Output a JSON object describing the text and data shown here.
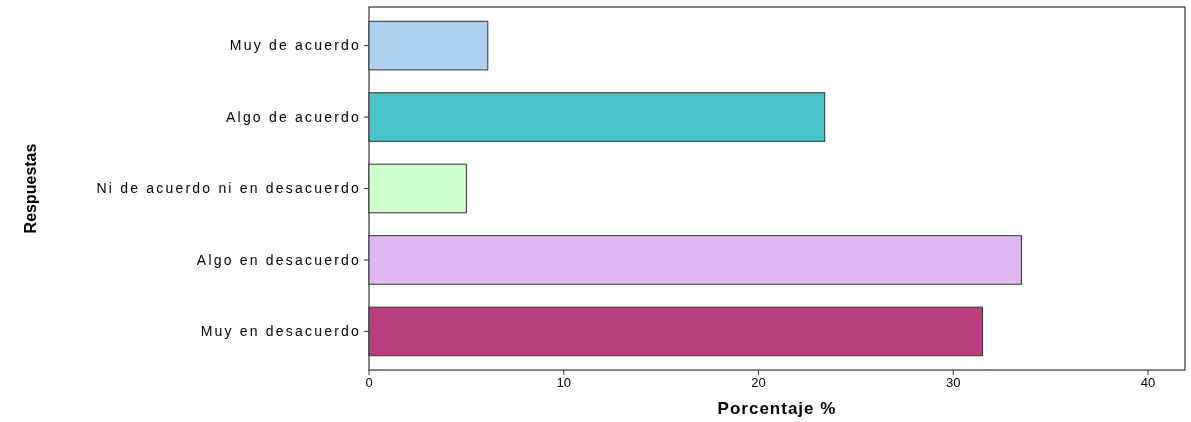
{
  "chart_data": {
    "type": "bar",
    "orientation": "horizontal",
    "categories": [
      "Muy de acuerdo",
      "Algo de acuerdo",
      "Ni de acuerdo ni en desacuerdo",
      "Algo en desacuerdo",
      "Muy en desacuerdo"
    ],
    "values": [
      6.1,
      23.4,
      5.0,
      33.5,
      31.5
    ],
    "colors": [
      "#aecfee",
      "#4ac2c7",
      "#ccffcc",
      "#dfb8f2",
      "#b93f7c"
    ],
    "xlim": [
      0,
      41.9
    ],
    "xticks": [
      0,
      10,
      20,
      30,
      40
    ],
    "xlabel": "Porcentaje %",
    "ylabel": "Respuestas",
    "grid": false
  }
}
